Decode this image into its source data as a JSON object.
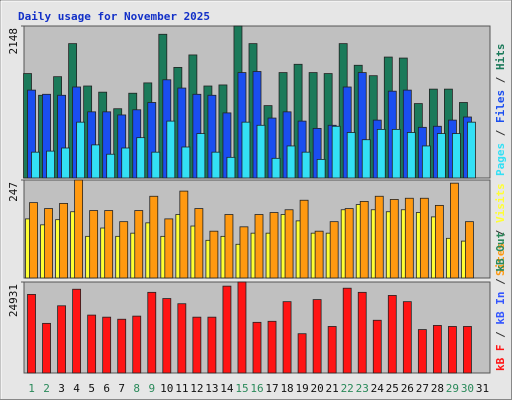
{
  "title": "Daily usage for November 2025",
  "categories": [
    "1",
    "2",
    "3",
    "4",
    "5",
    "6",
    "7",
    "8",
    "9",
    "10",
    "11",
    "12",
    "13",
    "14",
    "15",
    "16",
    "17",
    "18",
    "19",
    "20",
    "21",
    "22",
    "23",
    "24",
    "25",
    "26",
    "27",
    "28",
    "29",
    "30",
    "31"
  ],
  "weekend": [
    true,
    true,
    false,
    false,
    false,
    false,
    false,
    true,
    true,
    false,
    false,
    false,
    false,
    false,
    true,
    true,
    false,
    false,
    false,
    false,
    false,
    true,
    true,
    false,
    false,
    false,
    false,
    false,
    true,
    true,
    false
  ],
  "weekday_color": "#111111",
  "weekend_color": "#2a8a5a",
  "legend_separator": " / ",
  "chart_data": [
    {
      "type": "bar",
      "ylim": [
        0,
        2148
      ],
      "yticks": [
        2148
      ],
      "series": [
        {
          "name": "Hits",
          "color": "#1b7a5a",
          "values": [
            1476,
            1169,
            1432,
            1899,
            1300,
            1213,
            979,
            1198,
            1344,
            2031,
            1563,
            1739,
            1300,
            1315,
            2148,
            1899,
            1023,
            1490,
            1607,
            1490,
            1476,
            1899,
            1593,
            1446,
            1709,
            1695,
            1052,
            1256,
            1256,
            1067,
            null
          ]
        },
        {
          "name": "Files",
          "color": "#1a4ef0",
          "values": [
            1242,
            1183,
            1169,
            1286,
            935,
            935,
            891,
            964,
            1067,
            1388,
            1271,
            1183,
            1169,
            920,
            1490,
            1505,
            847,
            935,
            804,
            701,
            745,
            1286,
            1490,
            818,
            1227,
            1242,
            716,
            731,
            818,
            862,
            null
          ]
        },
        {
          "name": "Pages",
          "color": "#33e0f5",
          "values": [
            365,
            380,
            424,
            789,
            468,
            336,
            424,
            570,
            365,
            804,
            438,
            628,
            365,
            292,
            789,
            745,
            278,
            453,
            365,
            263,
            731,
            643,
            541,
            687,
            687,
            643,
            453,
            628,
            628,
            789,
            null
          ]
        }
      ]
    },
    {
      "type": "bar",
      "ylim": [
        0,
        247
      ],
      "yticks": [
        247
      ],
      "series": [
        {
          "name": "Visits",
          "color": "#ffff33",
          "values": [
            149,
            134,
            147,
            167,
            105,
            126,
            105,
            113,
            139,
            105,
            160,
            131,
            95,
            105,
            85,
            113,
            113,
            160,
            144,
            113,
            113,
            172,
            185,
            172,
            167,
            172,
            165,
            154,
            100,
            93,
            null
          ]
        },
        {
          "name": "Sites",
          "color": "#ff9910",
          "values": [
            190,
            175,
            188,
            247,
            170,
            170,
            142,
            170,
            206,
            149,
            219,
            175,
            118,
            160,
            129,
            160,
            165,
            172,
            196,
            118,
            142,
            175,
            193,
            206,
            198,
            201,
            201,
            183,
            239,
            142,
            null
          ]
        }
      ]
    },
    {
      "type": "bar",
      "ylim": [
        0,
        24931
      ],
      "yticks": [
        24931
      ],
      "series": [
        {
          "name": "kB F",
          "color": "#ff1414",
          "values": [
            21531,
            13598,
            18415,
            22947,
            15865,
            15298,
            14732,
            15582,
            22097,
            20398,
            18981,
            15298,
            15298,
            23797,
            24931,
            13882,
            14165,
            19548,
            10765,
            20114,
            12749,
            23231,
            22097,
            14448,
            21248,
            19548,
            11899,
            13032,
            12749,
            12749,
            null
          ]
        }
      ],
      "legend_only": [
        {
          "name": "kB In",
          "color": "#3355ff"
        },
        {
          "name": "kB Out",
          "color": "#2a8a5a"
        }
      ]
    }
  ]
}
